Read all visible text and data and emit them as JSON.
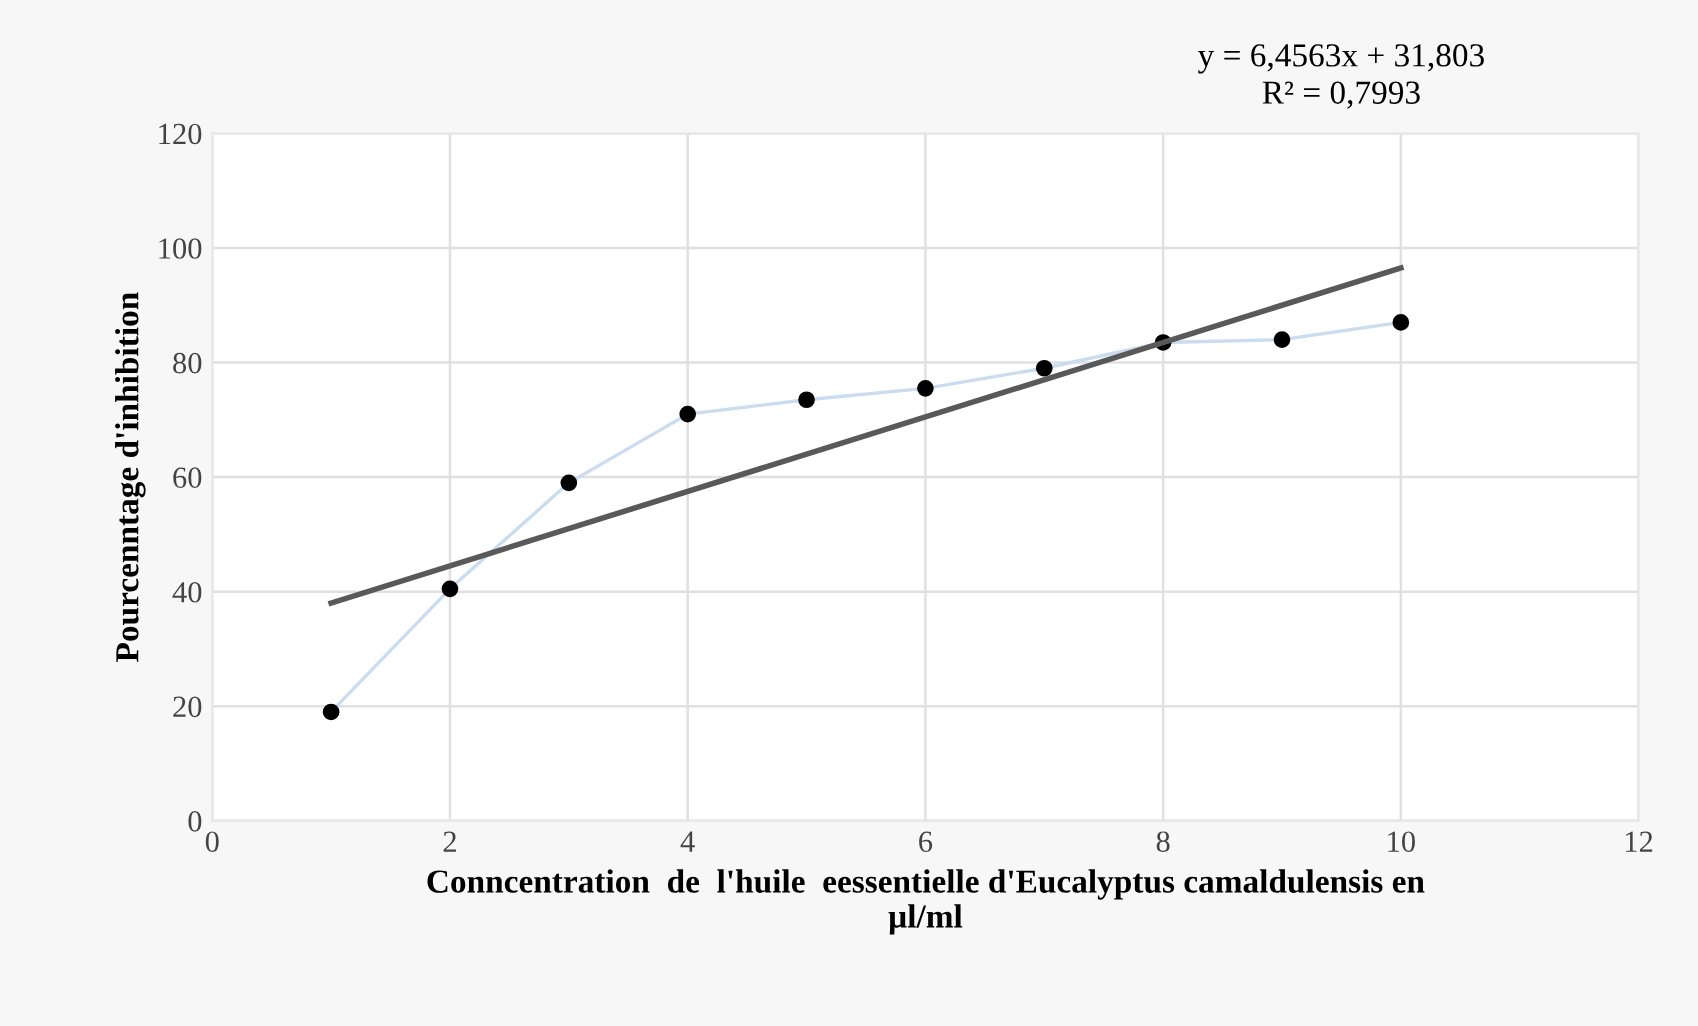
{
  "chart_data": {
    "type": "line",
    "xlabel": "Conncentration  de  l'huile  eessentielle d'Eucalyptus camaldulensis en\nµl/ml",
    "ylabel": "Pourcenntage d'inhibition",
    "annotations": [
      "y = 6,4563x + 31,803\nR² = 0,7993"
    ],
    "xlim": [
      0,
      12
    ],
    "xticks": [
      0,
      2,
      4,
      6,
      8,
      10,
      12
    ],
    "ylim": [
      0,
      120
    ],
    "yticks": [
      0,
      20,
      40,
      60,
      80,
      100,
      120
    ],
    "grid": true,
    "series": [
      {
        "color": "#c9dcf0",
        "marker": "none",
        "x": [
          1,
          2,
          3,
          4,
          5,
          6,
          7,
          8,
          9,
          10
        ],
        "values": [
          19,
          40.5,
          59,
          71,
          73.5,
          75.5,
          79,
          83.5,
          84,
          87
        ]
      },
      {
        "type": "scatter",
        "color": "#000000",
        "marker": "circle",
        "x": [
          1,
          2,
          3,
          4,
          5,
          6,
          7,
          8,
          9,
          10
        ],
        "values": [
          19,
          40.5,
          59,
          71,
          73.5,
          75.5,
          79,
          83.5,
          84,
          87
        ]
      },
      {
        "type": "line",
        "color": "#595959",
        "marker": "none",
        "x": [
          1,
          10
        ],
        "values": [
          38,
          96.5
        ]
      }
    ]
  }
}
